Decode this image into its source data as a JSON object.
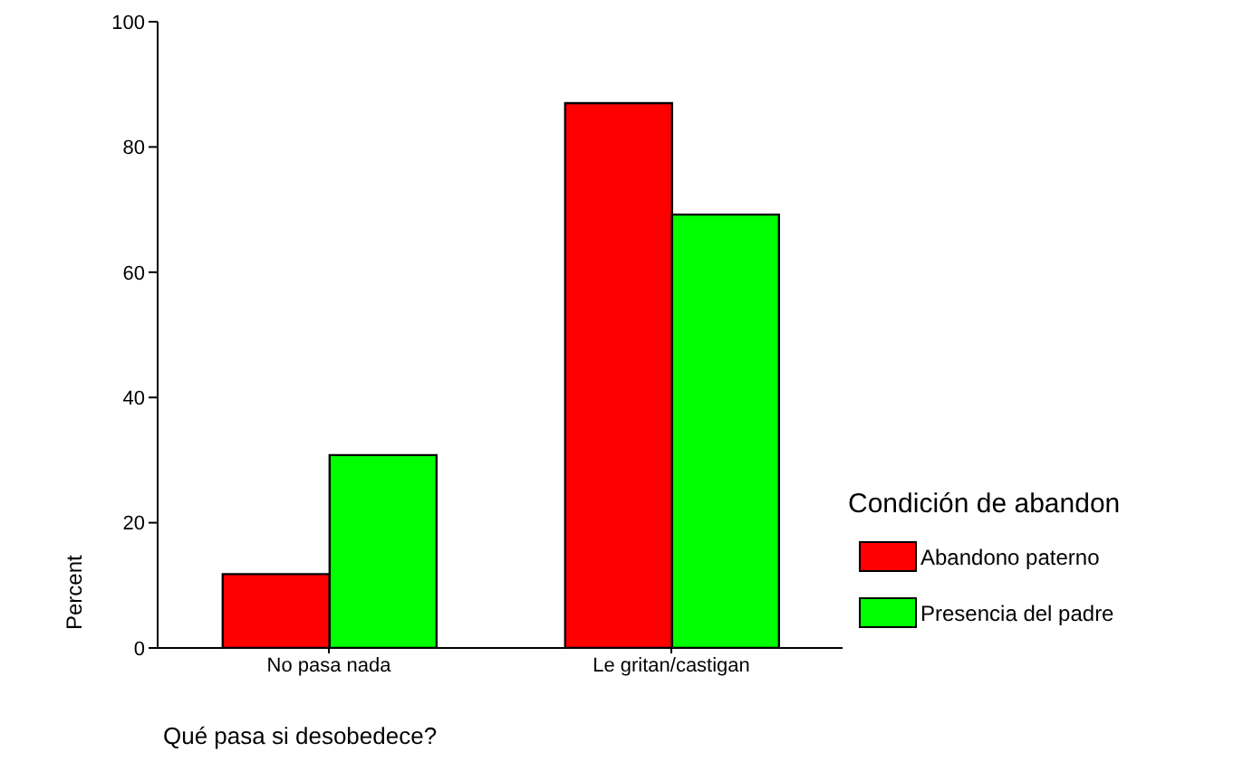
{
  "chart_data": {
    "type": "bar",
    "xlabel": "Qué pasa si desobedece?",
    "ylabel": "Percent",
    "legend_title": "Condición de abandon",
    "categories": [
      "No pasa nada",
      "Le gritan/castigan"
    ],
    "series": [
      {
        "name": "Abandono paterno",
        "color": "#ff0000",
        "values": [
          11.8,
          87.0
        ]
      },
      {
        "name": "Presencia del padre",
        "color": "#00ff00",
        "values": [
          30.8,
          69.2
        ]
      }
    ],
    "ylim": [
      0,
      100
    ],
    "yticks": [
      0,
      20,
      40,
      60,
      80,
      100
    ],
    "grid": false,
    "legend": "right"
  }
}
